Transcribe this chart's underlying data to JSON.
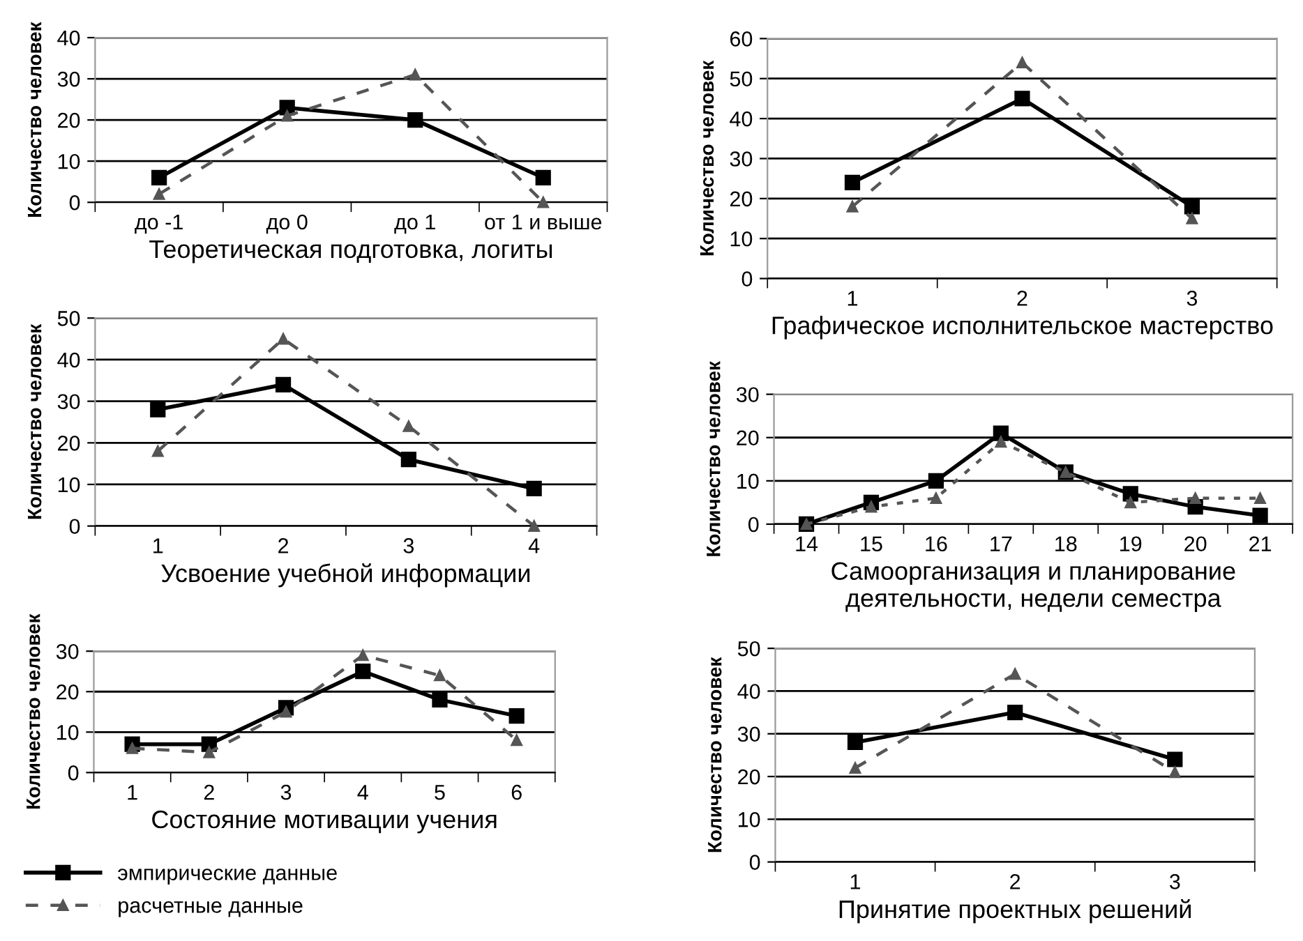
{
  "chart_data": [
    {
      "type": "line",
      "xlabel": "Теоретическая подготовка, логиты",
      "ylabel": "Количество человек",
      "categories": [
        "до -1",
        "до 0",
        "до 1",
        "от 1 и выше"
      ],
      "ylim": [
        0,
        40
      ],
      "yticks": [
        0,
        10,
        20,
        30,
        40
      ],
      "grid": "y",
      "series": [
        {
          "color": "#000000",
          "marker": "square",
          "line_style": "solid",
          "values": [
            6,
            23,
            20,
            6
          ]
        },
        {
          "color": "#555555",
          "marker": "triangle",
          "line_style": "dashed",
          "values": [
            2,
            21,
            31,
            0
          ]
        }
      ]
    },
    {
      "type": "line",
      "xlabel": "Графическое исполнительское мастерство",
      "ylabel": "Количество человек",
      "categories": [
        "1",
        "2",
        "3"
      ],
      "ylim": [
        0,
        60
      ],
      "yticks": [
        0,
        10,
        20,
        30,
        40,
        50,
        60
      ],
      "grid": "y",
      "series": [
        {
          "color": "#000000",
          "marker": "square",
          "line_style": "solid",
          "values": [
            24,
            45,
            18
          ]
        },
        {
          "color": "#555555",
          "marker": "triangle",
          "line_style": "dashed",
          "values": [
            18,
            54,
            15
          ]
        }
      ]
    },
    {
      "type": "line",
      "xlabel": "Усвоение учебной информации",
      "ylabel": "Количество человек",
      "categories": [
        "1",
        "2",
        "3",
        "4"
      ],
      "ylim": [
        0,
        50
      ],
      "yticks": [
        0,
        10,
        20,
        30,
        40,
        50
      ],
      "grid": "y",
      "series": [
        {
          "color": "#000000",
          "marker": "square",
          "line_style": "solid",
          "values": [
            28,
            34,
            16,
            9
          ]
        },
        {
          "color": "#555555",
          "marker": "triangle",
          "line_style": "dashed",
          "values": [
            18,
            45,
            24,
            0
          ]
        }
      ]
    },
    {
      "type": "line",
      "xlabel": "Самоорганизация и планирование деятельности, недели семестра",
      "ylabel": "Количество человек",
      "categories": [
        "14",
        "15",
        "16",
        "17",
        "18",
        "19",
        "20",
        "21"
      ],
      "ylim": [
        0,
        30
      ],
      "yticks": [
        0,
        10,
        20,
        30
      ],
      "grid": "y",
      "series": [
        {
          "color": "#000000",
          "marker": "square",
          "line_style": "solid",
          "values": [
            0,
            5,
            10,
            21,
            12,
            7,
            4,
            2
          ]
        },
        {
          "color": "#555555",
          "marker": "triangle",
          "line_style": "dotted",
          "values": [
            0,
            4,
            6,
            19,
            12,
            5,
            6,
            6
          ]
        }
      ]
    },
    {
      "type": "line",
      "xlabel": "Состояние мотивации учения",
      "ylabel": "Количество человек",
      "categories": [
        "1",
        "2",
        "3",
        "4",
        "5",
        "6"
      ],
      "ylim": [
        0,
        30
      ],
      "yticks": [
        0,
        10,
        20,
        30
      ],
      "grid": "y",
      "legend": "bottom",
      "series": [
        {
          "name": "эмпирические данные",
          "color": "#000000",
          "marker": "square",
          "line_style": "solid",
          "values": [
            7,
            7,
            16,
            25,
            18,
            14
          ]
        },
        {
          "name": "расчетные данные",
          "color": "#555555",
          "marker": "triangle",
          "line_style": "dashed",
          "values": [
            6,
            5,
            15,
            29,
            24,
            8
          ]
        }
      ]
    },
    {
      "type": "line",
      "xlabel": "Принятие проектных решений",
      "ylabel": "Количество человек",
      "categories": [
        "1",
        "2",
        "3"
      ],
      "ylim": [
        0,
        50
      ],
      "yticks": [
        0,
        10,
        20,
        30,
        40,
        50
      ],
      "grid": "y",
      "series": [
        {
          "color": "#000000",
          "marker": "square",
          "line_style": "solid",
          "values": [
            28,
            35,
            24
          ]
        },
        {
          "color": "#555555",
          "marker": "triangle",
          "line_style": "dashed",
          "values": [
            22,
            44,
            21
          ]
        }
      ]
    }
  ]
}
